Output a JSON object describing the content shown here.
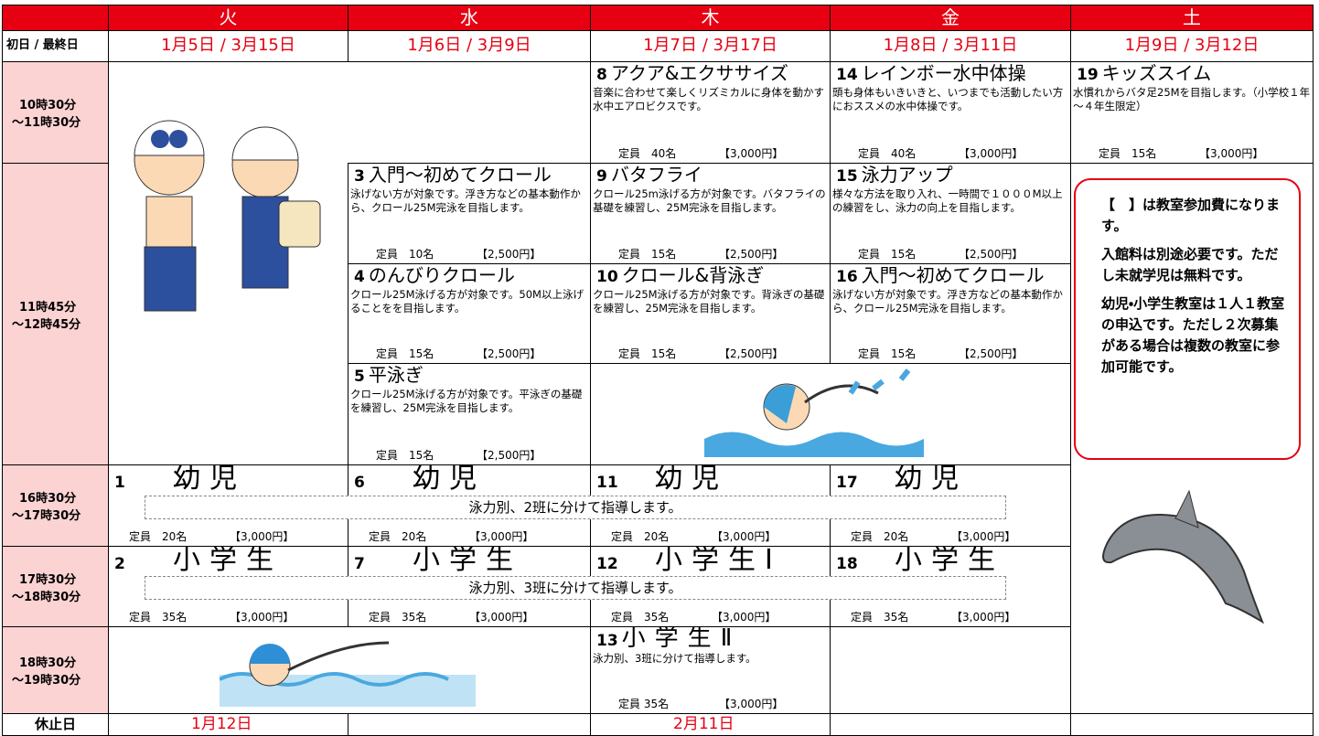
{
  "header": {
    "days": [
      "火",
      "水",
      "木",
      "金",
      "土"
    ]
  },
  "first_last": {
    "label": "初日 / 最終日",
    "dates": [
      "1月5日 / 3月15日",
      "1月6日 / 3月9日",
      "1月7日 / 3月17日",
      "1月8日 / 3月11日",
      "1月9日 / 3月12日"
    ]
  },
  "time_slots": [
    [
      "10時30分",
      "～11時30分"
    ],
    [
      "11時45分",
      "～12時45分"
    ],
    [
      "16時30分",
      "～17時30分"
    ],
    [
      "17時30分",
      "～18時30分"
    ],
    [
      "18時30分",
      "～19時30分"
    ]
  ],
  "classes": [
    {
      "num": "8",
      "name": "アクア&エクササイズ",
      "desc": "音楽に合わせて楽しくリズミカルに身体を動かす水中エアロビクスです。",
      "capacity": "定員　40名",
      "fee": "【3,000円】"
    },
    {
      "num": "14",
      "name": "レインボー水中体操",
      "desc": "頭も身体もいきいきと、いつまでも活動したい方におススメの水中体操です。",
      "capacity": "定員　40名",
      "fee": "【3,000円】"
    },
    {
      "num": "19",
      "name": "キッズスイム",
      "desc": "水慣れからバタ足25Mを目指します。（小学校１年～４年生限定）",
      "capacity": "定員　15名",
      "fee": "【3,000円】"
    },
    {
      "num": "3",
      "name": "入門～初めてクロール",
      "desc": "泳げない方が対象です。浮き方などの基本動作から、クロール25M完泳を目指します。",
      "capacity": "定員　10名",
      "fee": "【2,500円】"
    },
    {
      "num": "9",
      "name": "バタフライ",
      "desc": "クロール25m泳げる方が対象です。バタフライの基礎を練習し、25M完泳を目指します。",
      "capacity": "定員　15名",
      "fee": "【2,500円】"
    },
    {
      "num": "15",
      "name": "泳力アップ",
      "desc": "様々な方法を取り入れ、一時間で１０００M以上の練習をし、泳力の向上を目指します。",
      "capacity": "定員　15名",
      "fee": "【2,500円】"
    },
    {
      "num": "4",
      "name": "のんびりクロール",
      "desc": "クロール25M泳げる方が対象です。50M以上泳げることをを目指します。",
      "capacity": "定員　15名",
      "fee": "【2,500円】"
    },
    {
      "num": "10",
      "name": "クロール&背泳ぎ",
      "desc": "クロール25M泳げる方が対象です。背泳ぎの基礎を練習し、25M完泳を目指します。",
      "capacity": "定員　15名",
      "fee": "【2,500円】"
    },
    {
      "num": "16",
      "name": "入門～初めてクロール",
      "desc": "泳げない方が対象です。浮き方などの基本動作から、クロール25M完泳を目指します。",
      "capacity": "定員　15名",
      "fee": "【2,500円】"
    },
    {
      "num": "5",
      "name": "平泳ぎ",
      "desc": "クロール25M泳げる方が対象です。平泳ぎの基礎を練習し、25M完泳を目指します。",
      "capacity": "定員　15名",
      "fee": "【2,500円】"
    },
    {
      "num": "1",
      "name": "幼児",
      "capacity": "定員　20名",
      "fee": "【3,000円】"
    },
    {
      "num": "6",
      "name": "幼児",
      "capacity": "定員　20名",
      "fee": "【3,000円】"
    },
    {
      "num": "11",
      "name": "幼児",
      "capacity": "定員　20名",
      "fee": "【3,000円】"
    },
    {
      "num": "17",
      "name": "幼児",
      "capacity": "定員　20名",
      "fee": "【3,000円】"
    },
    {
      "num": "2",
      "name": "小学生",
      "capacity": "定員　35名",
      "fee": "【3,000円】"
    },
    {
      "num": "7",
      "name": "小学生",
      "capacity": "定員　35名",
      "fee": "【3,000円】"
    },
    {
      "num": "12",
      "name": "小学生Ⅰ",
      "capacity": "定員　35名",
      "fee": "【3,000円】"
    },
    {
      "num": "18",
      "name": "小学生",
      "capacity": "定員　35名",
      "fee": "【3,000円】"
    },
    {
      "num": "13",
      "name": "小学生Ⅱ",
      "desc": "泳力別、3班に分けて指導します。",
      "capacity": "定員 35名",
      "fee": "【3,000円】"
    }
  ],
  "group_notes": [
    "泳力別、2班に分けて指導します。",
    "泳力別、3班に分けて指導します。"
  ],
  "note": [
    "【　】は教室参加費になります。",
    "入館料は別途必要です。ただし未就学児は無料です。",
    "幼児・小学生教室は１人１教室の申込です。ただし２次募集がある場合は複数の教室に参加可能です。"
  ],
  "holiday": {
    "label": "休止日",
    "dates": {
      "火": "1月12日",
      "木": "2月11日"
    }
  }
}
